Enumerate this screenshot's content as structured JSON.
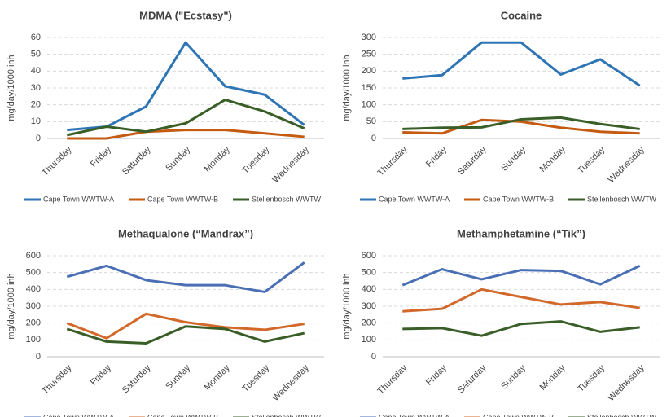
{
  "chart_data": [
    {
      "type": "line",
      "title": "MDMA (\"Ecstasy\")",
      "ylabel": "mg/day/1000 inh",
      "categories": [
        "Thursday",
        "Friday",
        "Saturday",
        "Sunday",
        "Monday",
        "Tuesday",
        "Wednesday"
      ],
      "ylim": [
        0,
        60
      ],
      "yticks": [
        0,
        10,
        20,
        30,
        40,
        50,
        60
      ],
      "grid": true,
      "series": [
        {
          "name": "Cape Town WWTW-A",
          "color": "#2e75b6",
          "values": [
            5,
            7,
            19,
            57,
            31,
            26,
            8
          ]
        },
        {
          "name": "Cape Town WWTW-B",
          "color": "#c55a11",
          "values": [
            0,
            0,
            4,
            5,
            5,
            3,
            1
          ]
        },
        {
          "name": "Stellenbosch WWTW",
          "color": "#3a5e27",
          "values": [
            2,
            7,
            4,
            9,
            23,
            16,
            6
          ]
        }
      ]
    },
    {
      "type": "line",
      "title": "Cocaine",
      "ylabel": "mg/day/1000 inh",
      "categories": [
        "Thursday",
        "Friday",
        "Saturday",
        "Sunday",
        "Monday",
        "Tuesday",
        "Wednesday"
      ],
      "ylim": [
        0,
        300
      ],
      "yticks": [
        0,
        50,
        100,
        150,
        200,
        250,
        300
      ],
      "grid": true,
      "series": [
        {
          "name": "Cape Town WWTW-A",
          "color": "#2e75b6",
          "values": [
            178,
            188,
            285,
            285,
            190,
            235,
            157
          ]
        },
        {
          "name": "Cape Town WWTW-B",
          "color": "#c55a11",
          "values": [
            18,
            15,
            55,
            50,
            32,
            20,
            15
          ]
        },
        {
          "name": "Stellenbosch WWTW",
          "color": "#3a5e27",
          "values": [
            28,
            32,
            33,
            57,
            62,
            43,
            28
          ]
        }
      ]
    },
    {
      "type": "line",
      "title": "Methaqualone (“Mandrax”)",
      "ylabel": "mg/day/1000 inh",
      "categories": [
        "Thursday",
        "Friday",
        "Saturday",
        "Sunday",
        "Monday",
        "Tuesday",
        "Wednesday"
      ],
      "ylim": [
        0,
        600
      ],
      "yticks": [
        0,
        100,
        200,
        300,
        400,
        500,
        600
      ],
      "grid": true,
      "series": [
        {
          "name": "Cape Town  WWTW-A",
          "color": "#4a6fb5",
          "values": [
            475,
            540,
            455,
            425,
            425,
            385,
            560
          ]
        },
        {
          "name": "Cape Town  WWTW-B",
          "color": "#d2692a",
          "values": [
            200,
            110,
            255,
            205,
            175,
            160,
            195
          ]
        },
        {
          "name": "Stellenbosch WWTW",
          "color": "#3a5e27",
          "values": [
            165,
            90,
            80,
            180,
            165,
            90,
            140
          ]
        }
      ]
    },
    {
      "type": "line",
      "title": "Methamphetamine (“Tik”)",
      "ylabel": "mg/day/1000 inh",
      "categories": [
        "Thursday",
        "Friday",
        "Saturday",
        "Sunday",
        "Monday",
        "Tuesday",
        "Wednesday"
      ],
      "ylim": [
        0,
        600
      ],
      "yticks": [
        0,
        100,
        200,
        300,
        400,
        500,
        600
      ],
      "grid": true,
      "series": [
        {
          "name": "Cape Town WWTW-A",
          "color": "#4a6fb5",
          "values": [
            425,
            520,
            460,
            515,
            510,
            430,
            540
          ]
        },
        {
          "name": "Cape Town WWTW-B",
          "color": "#d2692a",
          "values": [
            270,
            285,
            400,
            355,
            310,
            325,
            290
          ]
        },
        {
          "name": "Stellenbosch WWTW",
          "color": "#3a5e27",
          "values": [
            165,
            170,
            125,
            195,
            210,
            148,
            175
          ]
        }
      ]
    }
  ]
}
